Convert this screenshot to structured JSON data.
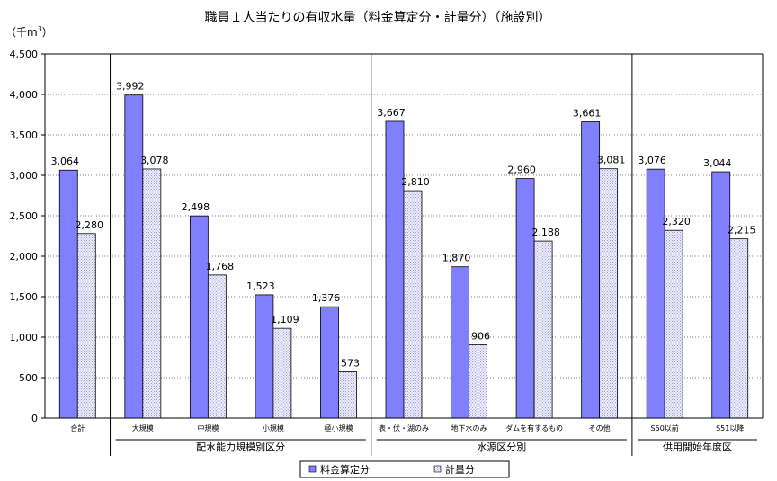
{
  "chart_data": {
    "type": "bar",
    "title": "職員１人当たりの有収水量（料金算定分・計量分）（施設別）",
    "unit_label": "（千m",
    "unit_superscript": "3",
    "unit_close": "）",
    "ylim": [
      0,
      4500
    ],
    "y_ticks": [
      "0",
      "500",
      "1,000",
      "1,500",
      "2,000",
      "2,500",
      "3,000",
      "3,500",
      "4,000",
      "4,500"
    ],
    "grid": "dotted horizontal",
    "categories": [
      "合計",
      "大規模",
      "中規模",
      "小規模",
      "極小規模",
      "表・伏・湖のみ",
      "地下水のみ",
      "ダムを有するもの",
      "その他",
      "S50以前",
      "S51以降"
    ],
    "series": [
      {
        "name": "料金算定分",
        "color": "#8080ff",
        "pattern": "solid",
        "values": [
          3064,
          3992,
          2498,
          1523,
          1376,
          3667,
          1870,
          2960,
          3661,
          3076,
          3044
        ],
        "labels": [
          "3,064",
          "3,992",
          "2,498",
          "1,523",
          "1,376",
          "3,667",
          "1,870",
          "2,960",
          "3,661",
          "3,076",
          "3,044"
        ]
      },
      {
        "name": "計量分",
        "color": "#d8d8f0",
        "pattern": "dotted",
        "values": [
          2280,
          3078,
          1768,
          1109,
          573,
          2810,
          906,
          2188,
          3081,
          2320,
          2215
        ],
        "labels": [
          "2,280",
          "3,078",
          "1,768",
          "1,109",
          "573",
          "2,810",
          "906",
          "2,188",
          "3,081",
          "2,320",
          "2,215"
        ]
      }
    ],
    "groups": [
      {
        "label": "配水能力規模別区分",
        "first": 1,
        "last": 4
      },
      {
        "label": "水源区分別",
        "first": 5,
        "last": 8
      },
      {
        "label": "供用開始年度区",
        "first": 9,
        "last": 10
      }
    ],
    "legend_position": "bottom"
  }
}
